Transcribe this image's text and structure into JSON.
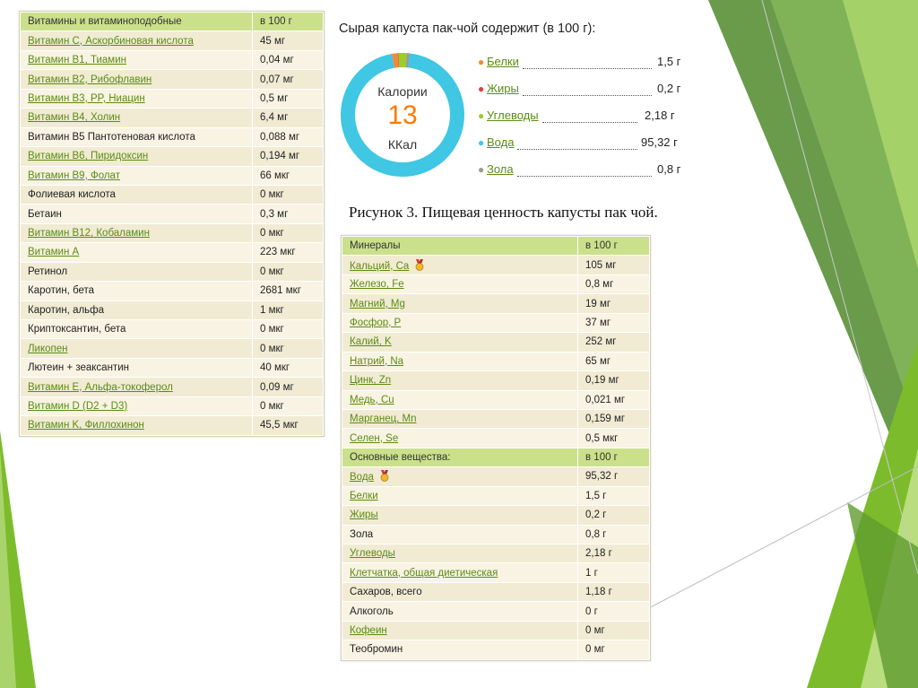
{
  "vitamins": {
    "header": [
      "Витамины и витаминоподобные",
      "в 100 г"
    ],
    "rows": [
      {
        "name": "Витамин C, Аскорбиновая кислота",
        "value": "45 мг",
        "link": true
      },
      {
        "name": "Витамин B1, Тиамин",
        "value": "0,04 мг",
        "link": true
      },
      {
        "name": "Витамин B2, Рибофлавин",
        "value": "0,07 мг",
        "link": true
      },
      {
        "name": "Витамин B3, PP, Ниацин",
        "value": "0,5 мг",
        "link": true
      },
      {
        "name": "Витамин B4, Холин",
        "value": "6,4 мг",
        "link": true
      },
      {
        "name": "Витамин B5 Пантотеновая кислота",
        "value": "0,088 мг",
        "link": false
      },
      {
        "name": "Витамин B6, Пиридоксин",
        "value": "0,194 мг",
        "link": true
      },
      {
        "name": "Витамин B9, Фолат",
        "value": "66 мкг",
        "link": true
      },
      {
        "name": "Фолиевая кислота",
        "value": "0 мкг",
        "link": false
      },
      {
        "name": "Бетаин",
        "value": "0,3 мг",
        "link": false
      },
      {
        "name": "Витамин B12, Кобаламин",
        "value": "0 мкг",
        "link": true
      },
      {
        "name": "Витамин A",
        "value": "223 мкг",
        "link": true
      },
      {
        "name": "Ретинол",
        "value": "0 мкг",
        "link": false
      },
      {
        "name": "Каротин, бета",
        "value": "2681 мкг",
        "link": false
      },
      {
        "name": "Каротин, альфа",
        "value": "1 мкг",
        "link": false
      },
      {
        "name": "Криптоксантин, бета",
        "value": "0 мкг",
        "link": false
      },
      {
        "name": "Ликопен",
        "value": "0 мкг",
        "link": true
      },
      {
        "name": "Лютеин + зеаксантин",
        "value": "40 мкг",
        "link": false
      },
      {
        "name": "Витамин E, Альфа-токоферол",
        "value": "0,09 мг",
        "link": true
      },
      {
        "name": "Витамин D (D2 + D3)",
        "value": "0 мкг",
        "link": true
      },
      {
        "name": "Витамин K, Филлохинон",
        "value": "45,5 мкг",
        "link": true
      }
    ]
  },
  "summary": {
    "title": "Сырая капуста пак-чой содержит (в 100 г):",
    "kcal_label_top": "Калории",
    "kcal_value": "13",
    "kcal_label_bottom": "ККал",
    "macros": [
      {
        "name": "Белки",
        "value": "1,5 г",
        "color": "#f28a3c"
      },
      {
        "name": "Жиры",
        "value": "0,2 г",
        "color": "#e8403a"
      },
      {
        "name": "Углеводы",
        "value": "2,18 г",
        "color": "#9bcd2d"
      },
      {
        "name": "Вода",
        "value": "95,32 г",
        "color": "#3fc7e3"
      },
      {
        "name": "Зола",
        "value": "0,8 г",
        "color": "#9a9a9a"
      }
    ],
    "caption": "Рисунок 3. Пищевая ценность капусты пак чой."
  },
  "minerals": {
    "header": [
      "Минералы",
      "в 100 г"
    ],
    "rows": [
      {
        "name": "Кальций, Ca",
        "value": "105 мг",
        "link": true,
        "medal": true
      },
      {
        "name": "Железо, Fe",
        "value": "0,8 мг",
        "link": true
      },
      {
        "name": "Магний, Mg",
        "value": "19 мг",
        "link": true
      },
      {
        "name": "Фосфор, P",
        "value": "37 мг",
        "link": true
      },
      {
        "name": "Калий, K",
        "value": "252 мг",
        "link": true
      },
      {
        "name": "Натрий, Na",
        "value": "65 мг",
        "link": true
      },
      {
        "name": "Цинк, Zn",
        "value": "0,19 мг",
        "link": true
      },
      {
        "name": "Медь, Cu",
        "value": "0,021 мг",
        "link": true
      },
      {
        "name": "Марганец, Mn",
        "value": "0,159 мг",
        "link": true
      },
      {
        "name": "Селен, Se",
        "value": "0,5 мкг",
        "link": true
      }
    ],
    "subheader": [
      "Основные вещества:",
      "в 100 г"
    ],
    "basics": [
      {
        "name": "Вода",
        "value": "95,32 г",
        "link": true,
        "medal": true
      },
      {
        "name": "Белки",
        "value": "1,5 г",
        "link": true
      },
      {
        "name": "Жиры",
        "value": "0,2 г",
        "link": true
      },
      {
        "name": "Зола",
        "value": "0,8 г",
        "link": false
      },
      {
        "name": "Углеводы",
        "value": "2,18 г",
        "link": true
      },
      {
        "name": "Клетчатка, общая диетическая",
        "value": "1 г",
        "link": true
      },
      {
        "name": "Сахаров, всего",
        "value": "1,18 г",
        "link": false
      },
      {
        "name": "Алкоголь",
        "value": "0 г",
        "link": false
      },
      {
        "name": "Кофеин",
        "value": "0 мг",
        "link": true
      },
      {
        "name": "Теобромин",
        "value": "0 мг",
        "link": false
      }
    ]
  },
  "colors": {
    "header_bg": "#cbe08b",
    "link": "#5a8c12",
    "accent_orange": "#ff7a00",
    "decor_greens": [
      "#7cbc2c",
      "#4f8a2b",
      "#a9d46b",
      "#9bcf52"
    ]
  }
}
